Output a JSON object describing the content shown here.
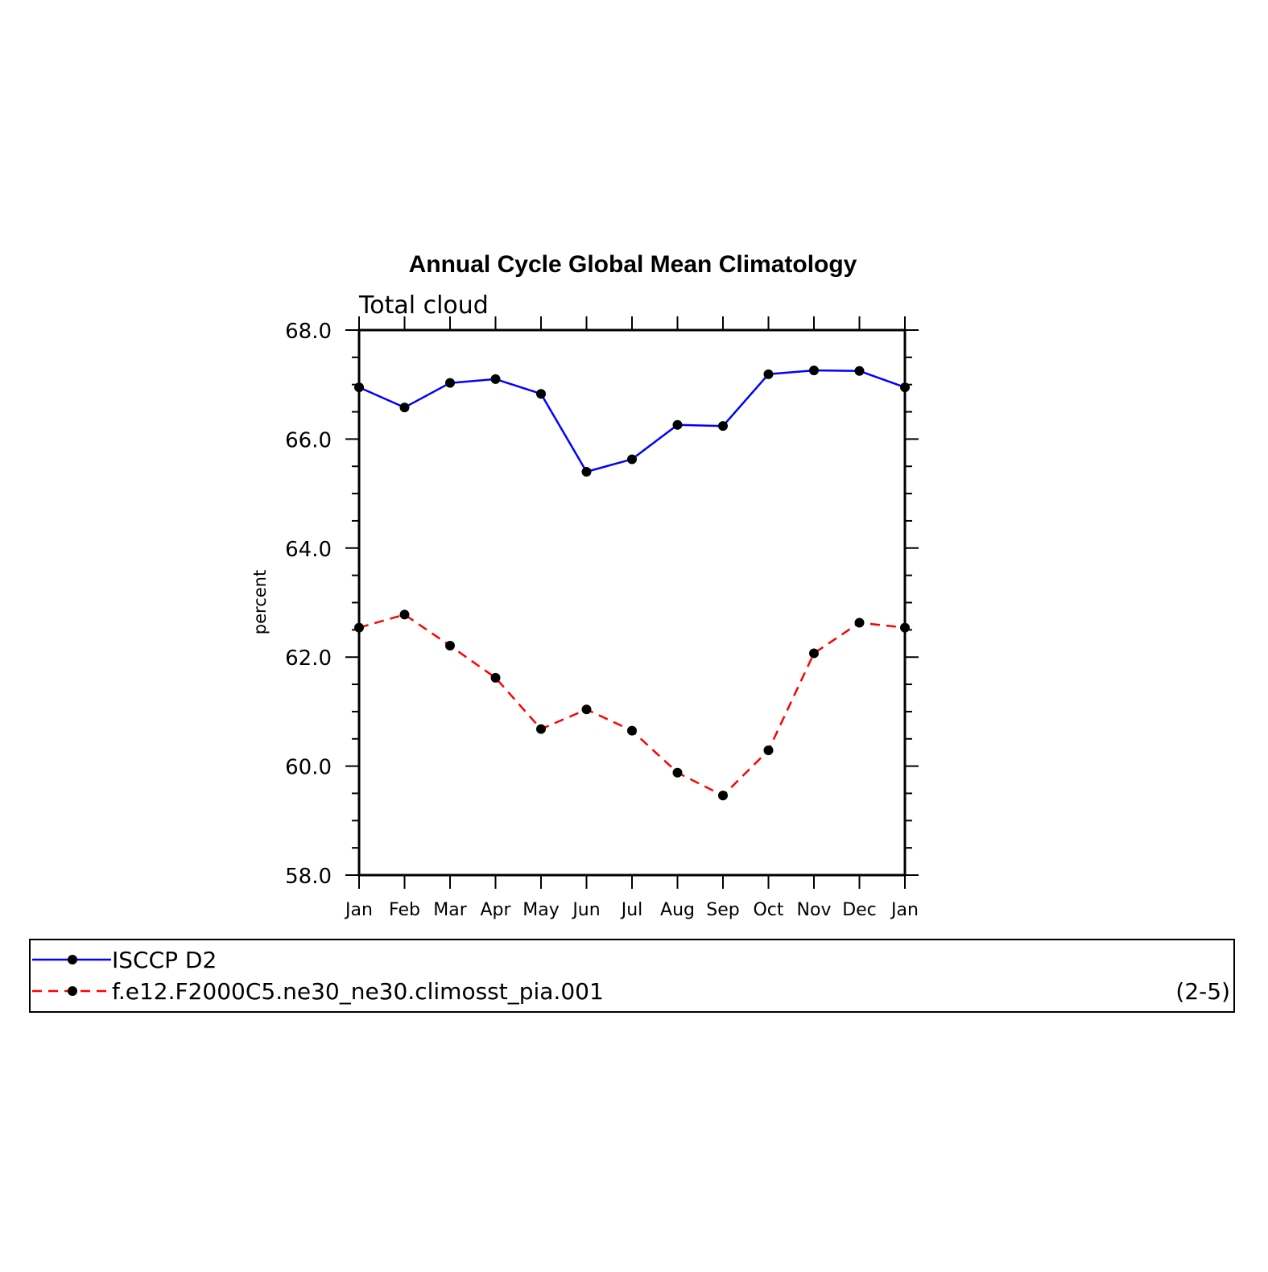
{
  "chart_data": {
    "type": "line",
    "title": "Annual Cycle Global Mean Climatology",
    "subtitle": "Total cloud",
    "xlabel": "",
    "ylabel": "percent",
    "categories": [
      "Jan",
      "Feb",
      "Mar",
      "Apr",
      "May",
      "Jun",
      "Jul",
      "Aug",
      "Sep",
      "Oct",
      "Nov",
      "Dec",
      "Jan"
    ],
    "ylim": [
      58.0,
      68.0
    ],
    "yticks": [
      "58.0",
      "60.0",
      "62.0",
      "64.0",
      "66.0",
      "68.0"
    ],
    "grid": false,
    "legend_position": "bottom",
    "series": [
      {
        "name": "ISCCP D2",
        "color": "#0000ff",
        "line_style": "solid",
        "marker": "filled-circle",
        "values": [
          66.95,
          66.58,
          67.03,
          67.1,
          66.83,
          65.4,
          65.63,
          66.26,
          66.24,
          67.19,
          67.26,
          67.25,
          66.95
        ]
      },
      {
        "name": "f.e12.F2000C5.ne30_ne30.climosst_pia.001",
        "color": "#ff0000",
        "line_style": "dashed",
        "marker": "filled-circle",
        "values": [
          62.54,
          62.78,
          62.21,
          61.62,
          60.68,
          61.04,
          60.65,
          59.88,
          59.46,
          60.29,
          62.07,
          62.63,
          62.54
        ]
      }
    ],
    "annotation": "(2-5)"
  }
}
